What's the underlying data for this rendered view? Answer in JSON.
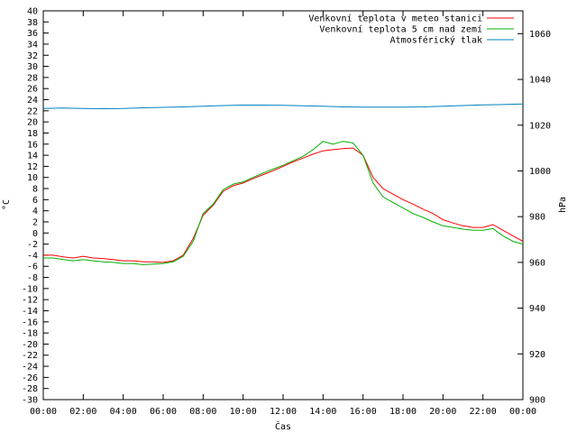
{
  "chart_data": {
    "type": "line",
    "xlabel": "Čas",
    "ylabel_left": "°C",
    "ylabel_right": "hPa",
    "xlim": [
      0,
      24
    ],
    "ylim_left": [
      -30,
      40
    ],
    "ylim_right": [
      900,
      1070
    ],
    "grid": false,
    "legend_placement": "top-right",
    "x_ticks": [
      "00:00",
      "02:00",
      "04:00",
      "06:00",
      "08:00",
      "10:00",
      "12:00",
      "14:00",
      "16:00",
      "18:00",
      "20:00",
      "22:00",
      "00:00"
    ],
    "y_left_ticks": [
      -30,
      -28,
      -26,
      -24,
      -22,
      -20,
      -18,
      -16,
      -14,
      -12,
      -10,
      -8,
      -6,
      -4,
      -2,
      0,
      2,
      4,
      6,
      8,
      10,
      12,
      14,
      16,
      18,
      20,
      22,
      24,
      26,
      28,
      30,
      32,
      34,
      36,
      38,
      40
    ],
    "y_right_ticks": [
      900,
      920,
      940,
      960,
      980,
      1000,
      1020,
      1040,
      1060
    ],
    "colors": {
      "series1": "#ff0000",
      "series2": "#00b000",
      "series3": "#0080c0"
    },
    "series": [
      {
        "name": "Venkovní teplota v meteo stanici",
        "axis": "left",
        "x": [
          0,
          0.5,
          1,
          1.5,
          2,
          2.5,
          3,
          3.5,
          4,
          4.5,
          5,
          5.5,
          6,
          6.5,
          7,
          7.5,
          8,
          8.5,
          9,
          9.5,
          10,
          10.5,
          11,
          11.5,
          12,
          12.5,
          13,
          13.5,
          14,
          14.5,
          15,
          15.5,
          16,
          16.5,
          17,
          17.5,
          18,
          18.5,
          19,
          19.5,
          20,
          20.5,
          21,
          21.5,
          22,
          22.5,
          23,
          23.5,
          24
        ],
        "values": [
          -4.0,
          -4.0,
          -4.3,
          -4.5,
          -4.2,
          -4.5,
          -4.6,
          -4.8,
          -5.0,
          -5.0,
          -5.2,
          -5.2,
          -5.3,
          -5.0,
          -4.0,
          -1.0,
          3.2,
          5.0,
          7.5,
          8.5,
          9.0,
          9.8,
          10.5,
          11.2,
          12.0,
          12.8,
          13.5,
          14.2,
          14.8,
          15.0,
          15.2,
          15.3,
          14.0,
          10.0,
          8.0,
          7.0,
          6.0,
          5.2,
          4.3,
          3.5,
          2.4,
          1.8,
          1.3,
          1.0,
          1.0,
          1.5,
          0.5,
          -0.5,
          -1.5
        ]
      },
      {
        "name": "Venkovní teplota 5 cm nad zemí",
        "axis": "left",
        "x": [
          0,
          0.5,
          1,
          1.5,
          2,
          2.5,
          3,
          3.5,
          4,
          4.5,
          5,
          5.5,
          6,
          6.5,
          7,
          7.5,
          8,
          8.5,
          9,
          9.5,
          10,
          10.5,
          11,
          11.5,
          12,
          12.5,
          13,
          13.5,
          14,
          14.5,
          15,
          15.5,
          16,
          16.5,
          17,
          17.5,
          18,
          18.5,
          19,
          19.5,
          20,
          20.5,
          21,
          21.5,
          22,
          22.5,
          23,
          23.5,
          24
        ],
        "values": [
          -4.5,
          -4.5,
          -4.8,
          -5.0,
          -4.8,
          -5.0,
          -5.2,
          -5.3,
          -5.5,
          -5.5,
          -5.7,
          -5.6,
          -5.5,
          -5.2,
          -4.2,
          -1.5,
          3.5,
          5.2,
          7.8,
          8.8,
          9.2,
          10.0,
          10.8,
          11.5,
          12.2,
          13.0,
          13.8,
          15.0,
          16.5,
          16.0,
          16.5,
          16.2,
          14.0,
          9.0,
          6.5,
          5.5,
          4.5,
          3.5,
          2.8,
          2.0,
          1.3,
          1.0,
          0.7,
          0.5,
          0.5,
          0.8,
          -0.5,
          -1.5,
          -2.0
        ]
      },
      {
        "name": "Atmosférický tlak",
        "axis": "right",
        "x": [
          0,
          1,
          2,
          3,
          4,
          5,
          6,
          7,
          8,
          9,
          10,
          11,
          12,
          13,
          14,
          15,
          16,
          17,
          18,
          19,
          20,
          21,
          22,
          23,
          24
        ],
        "values": [
          1027.3,
          1027.5,
          1027.3,
          1027.2,
          1027.3,
          1027.6,
          1027.8,
          1028.0,
          1028.3,
          1028.6,
          1028.8,
          1028.8,
          1028.7,
          1028.5,
          1028.3,
          1028.0,
          1027.9,
          1027.9,
          1027.9,
          1028.0,
          1028.3,
          1028.6,
          1028.9,
          1029.0,
          1029.3
        ]
      }
    ]
  }
}
